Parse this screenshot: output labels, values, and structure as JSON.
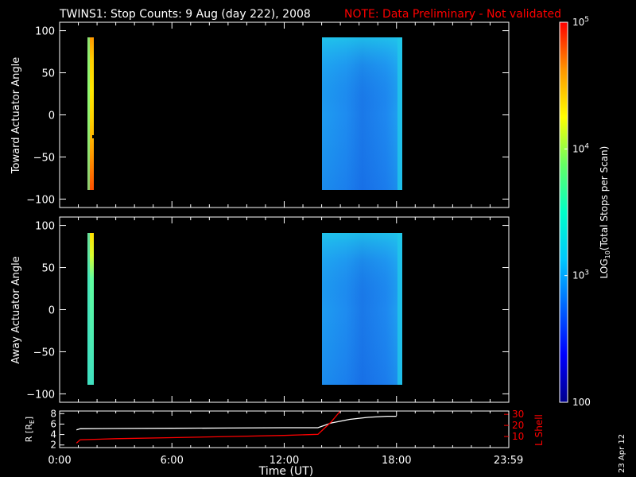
{
  "title": {
    "main": "TWINS1: Stop Counts:  9 Aug (day 222), 2008",
    "note": "NOTE: Data Preliminary - Not validated",
    "note_color": "#ff0000"
  },
  "date_stamp": "23 Apr 12",
  "chart_data": [
    {
      "type": "heatmap",
      "panel": "toward",
      "ylabel": "Toward Actuator Angle",
      "ylim": [
        -110,
        110
      ],
      "yticks": [
        100,
        50,
        0,
        -50,
        -100
      ],
      "xlim_hours": [
        0,
        24
      ],
      "blocks": [
        {
          "t_start": "00:55",
          "t_end": "01:10",
          "angle_range": [
            -88,
            90
          ],
          "log10_counts": 4.4,
          "note": "high counts (yellow/orange/red)"
        },
        {
          "t_start": "13:50",
          "t_end": "18:00",
          "angle_range": [
            -88,
            90
          ],
          "log10_counts": 3.1,
          "note": "moderate counts (cyan/blue)"
        }
      ]
    },
    {
      "type": "heatmap",
      "panel": "away",
      "ylabel": "Away Actuator Angle",
      "ylim": [
        -110,
        110
      ],
      "yticks": [
        100,
        50,
        0,
        -50,
        -100
      ],
      "xlim_hours": [
        0,
        24
      ],
      "blocks": [
        {
          "t_start": "00:55",
          "t_end": "01:10",
          "angle_range": [
            -88,
            90
          ],
          "log10_counts": 3.6,
          "note": "yellow at top, green/cyan below"
        },
        {
          "t_start": "13:50",
          "t_end": "18:00",
          "angle_range": [
            -88,
            90
          ],
          "log10_counts": 3.0,
          "note": "moderate counts (cyan/blue)"
        }
      ]
    },
    {
      "type": "line",
      "panel": "orbit",
      "ylabel_left": "R [R",
      "ylabel_left_sub": "E",
      "ylabel_right": "L Shell",
      "xlabel": "Time (UT)",
      "xtick_labels": [
        "0:00",
        "6:00",
        "12:00",
        "18:00",
        "23:59"
      ],
      "xtick_hours": [
        0,
        6,
        12,
        18,
        23.983
      ],
      "ylim_left": [
        1.5,
        8.5
      ],
      "yticks_left": [
        2,
        4,
        6,
        8
      ],
      "ylim_right": [
        0,
        33
      ],
      "yticks_right": [
        10,
        20,
        30
      ],
      "series": [
        {
          "axis": "left",
          "color": "#ffffff",
          "x": [
            0.9,
            1.1,
            3,
            6,
            9,
            12,
            13.8,
            14.5,
            15.5,
            16.5,
            17.5,
            18.0
          ],
          "y": [
            4.9,
            5.1,
            5.15,
            5.2,
            5.25,
            5.3,
            5.3,
            6.2,
            6.9,
            7.3,
            7.5,
            7.5
          ]
        },
        {
          "axis": "right",
          "color": "#ff0000",
          "x": [
            0.9,
            1.1,
            3,
            6,
            9,
            12,
            13.8,
            14.5,
            15.0
          ],
          "y": [
            4,
            7,
            8,
            9,
            10,
            11,
            12,
            23,
            33
          ]
        }
      ]
    },
    {
      "type": "colorbar",
      "label_prefix": "LOG",
      "label_sub": "10",
      "label_suffix": "(Total Stops per Scan)",
      "scale": "log",
      "range": [
        100,
        100000
      ],
      "ticks": [
        {
          "value": 100,
          "base": "100",
          "exp": ""
        },
        {
          "value": 1000,
          "base": "10",
          "exp": "3"
        },
        {
          "value": 10000,
          "base": "10",
          "exp": "4"
        },
        {
          "value": 100000,
          "base": "10",
          "exp": "5"
        }
      ],
      "colors": [
        "#00008c",
        "#0000ff",
        "#0064ff",
        "#00c8ff",
        "#00ffc8",
        "#64ff64",
        "#ffff00",
        "#ff9600",
        "#ff0000"
      ]
    }
  ]
}
